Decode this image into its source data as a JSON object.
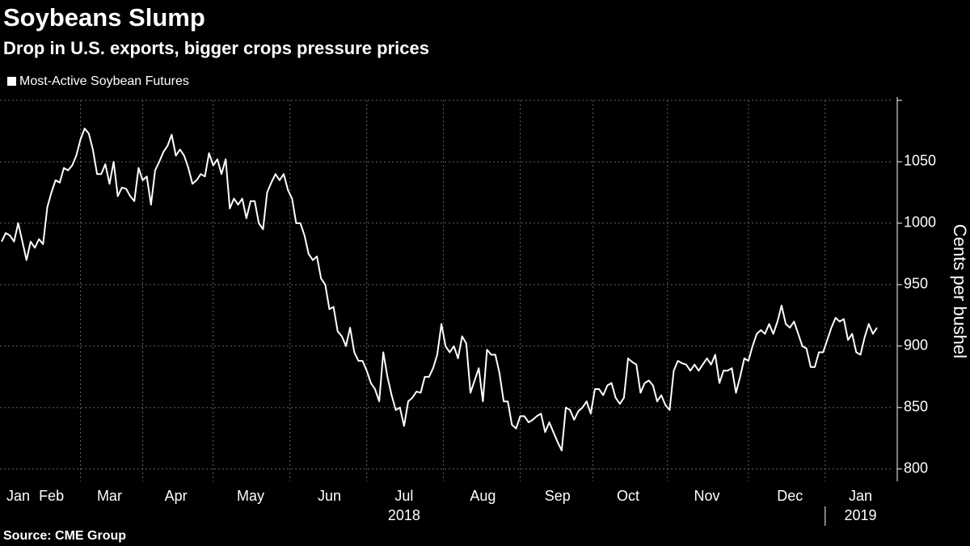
{
  "chart_data": {
    "type": "line",
    "title": "Soybeans Slump",
    "subtitle": "Drop in U.S. exports, bigger crops pressure prices",
    "y_axis_label": "Cents per bushel",
    "source": "Source: CME Group",
    "categories": [
      null,
      null,
      null,
      null,
      "Jan",
      null,
      null,
      null,
      null,
      null,
      null,
      null,
      "Feb",
      null,
      null,
      null,
      null,
      null,
      null,
      null,
      null,
      null,
      null,
      null,
      null,
      null,
      "Mar",
      null,
      null,
      null,
      null,
      null,
      null,
      null,
      null,
      null,
      null,
      null,
      null,
      null,
      null,
      null,
      "Apr",
      null,
      null,
      null,
      null,
      null,
      null,
      null,
      null,
      null,
      null,
      null,
      null,
      null,
      null,
      null,
      null,
      null,
      "May",
      null,
      null,
      null,
      null,
      null,
      null,
      null,
      null,
      null,
      null,
      null,
      null,
      null,
      null,
      null,
      null,
      null,
      null,
      "Jun",
      null,
      null,
      null,
      null,
      null,
      null,
      null,
      null,
      null,
      null,
      null,
      null,
      null,
      null,
      null,
      null,
      null,
      "Jul",
      null,
      null,
      null,
      null,
      null,
      null,
      null,
      null,
      null,
      null,
      null,
      null,
      null,
      null,
      null,
      null,
      null,
      null,
      "Aug",
      null,
      null,
      null,
      null,
      null,
      null,
      null,
      null,
      null,
      null,
      null,
      null,
      null,
      null,
      null,
      null,
      null,
      "Sep",
      null,
      null,
      null,
      null,
      null,
      null,
      null,
      null,
      null,
      null,
      null,
      null,
      null,
      null,
      null,
      null,
      "Oct",
      null,
      null,
      null,
      null,
      null,
      null,
      null,
      null,
      null,
      null,
      null,
      null,
      null,
      null,
      null,
      null,
      null,
      null,
      "Nov",
      null,
      null,
      null,
      null,
      null,
      null,
      null,
      null,
      null,
      null,
      null,
      null,
      null,
      null,
      null,
      null,
      null,
      null,
      null,
      "Dec",
      null,
      null,
      null,
      null,
      null,
      null,
      null,
      null,
      null,
      null,
      null,
      null,
      null,
      null,
      null,
      null,
      "Jan",
      null,
      null,
      null,
      null
    ],
    "years": [
      null,
      null,
      null,
      null,
      null,
      null,
      null,
      null,
      null,
      null,
      null,
      null,
      null,
      null,
      null,
      null,
      null,
      null,
      null,
      null,
      null,
      null,
      null,
      null,
      null,
      null,
      null,
      null,
      null,
      null,
      null,
      null,
      null,
      null,
      null,
      null,
      null,
      null,
      null,
      null,
      null,
      null,
      null,
      null,
      null,
      null,
      null,
      null,
      null,
      null,
      null,
      null,
      null,
      null,
      null,
      null,
      null,
      null,
      null,
      null,
      null,
      null,
      null,
      null,
      null,
      null,
      null,
      null,
      null,
      null,
      null,
      null,
      null,
      null,
      null,
      null,
      null,
      null,
      null,
      null,
      null,
      null,
      null,
      null,
      null,
      null,
      null,
      null,
      null,
      null,
      null,
      null,
      null,
      null,
      null,
      null,
      null,
      "2018",
      null,
      null,
      null,
      null,
      null,
      null,
      null,
      null,
      null,
      null,
      null,
      null,
      null,
      null,
      null,
      null,
      null,
      null,
      null,
      null,
      null,
      null,
      null,
      null,
      null,
      null,
      null,
      null,
      null,
      null,
      null,
      null,
      null,
      null,
      null,
      null,
      null,
      null,
      null,
      null,
      null,
      null,
      null,
      null,
      null,
      null,
      null,
      null,
      null,
      null,
      null,
      null,
      null,
      null,
      null,
      null,
      null,
      null,
      null,
      null,
      null,
      null,
      null,
      null,
      null,
      null,
      null,
      null,
      null,
      null,
      null,
      null,
      null,
      null,
      null,
      null,
      null,
      null,
      null,
      null,
      null,
      null,
      null,
      null,
      null,
      null,
      null,
      null,
      null,
      null,
      null,
      null,
      null,
      null,
      null,
      null,
      null,
      null,
      null,
      null,
      null,
      null,
      null,
      null,
      null,
      null,
      null,
      null,
      null,
      "2019",
      null,
      null,
      null,
      null
    ],
    "series": [
      {
        "name": "Most-Active Soybean Futures",
        "color": "#ffffff",
        "values": [
          985,
          992,
          990,
          985,
          1000,
          985,
          970,
          985,
          980,
          987,
          983,
          1013,
          1025,
          1035,
          1033,
          1045,
          1043,
          1047,
          1055,
          1068,
          1077,
          1073,
          1060,
          1040,
          1040,
          1048,
          1032,
          1050,
          1022,
          1029,
          1028,
          1022,
          1018,
          1045,
          1035,
          1038,
          1015,
          1043,
          1050,
          1058,
          1063,
          1072,
          1055,
          1060,
          1055,
          1045,
          1032,
          1035,
          1040,
          1038,
          1057,
          1047,
          1052,
          1040,
          1052,
          1012,
          1020,
          1015,
          1020,
          1004,
          1018,
          1018,
          1000,
          995,
          1025,
          1033,
          1040,
          1035,
          1040,
          1027,
          1020,
          1000,
          1000,
          990,
          975,
          970,
          973,
          955,
          950,
          930,
          932,
          912,
          908,
          900,
          915,
          895,
          888,
          888,
          880,
          870,
          865,
          855,
          895,
          875,
          860,
          848,
          850,
          835,
          855,
          858,
          863,
          862,
          875,
          875,
          882,
          893,
          918,
          900,
          895,
          900,
          890,
          908,
          902,
          862,
          872,
          882,
          855,
          897,
          893,
          893,
          878,
          855,
          855,
          836,
          833,
          843,
          843,
          838,
          840,
          843,
          845,
          830,
          838,
          830,
          822,
          815,
          850,
          848,
          840,
          847,
          850,
          855,
          845,
          865,
          865,
          860,
          868,
          870,
          858,
          853,
          858,
          890,
          887,
          885,
          862,
          870,
          872,
          868,
          855,
          860,
          852,
          848,
          880,
          888,
          886,
          885,
          880,
          885,
          880,
          885,
          890,
          885,
          893,
          870,
          880,
          880,
          882,
          862,
          875,
          890,
          888,
          900,
          910,
          913,
          910,
          918,
          910,
          920,
          933,
          918,
          915,
          920,
          910,
          900,
          898,
          883,
          883,
          895,
          895,
          905,
          915,
          923,
          920,
          922,
          905,
          910,
          895,
          893,
          907,
          918,
          910,
          915
        ]
      }
    ],
    "ylim": [
      790,
      1100
    ],
    "yticks": [
      800,
      850,
      900,
      950,
      1000,
      1050
    ],
    "grid": true,
    "y_axis_side": "right"
  }
}
